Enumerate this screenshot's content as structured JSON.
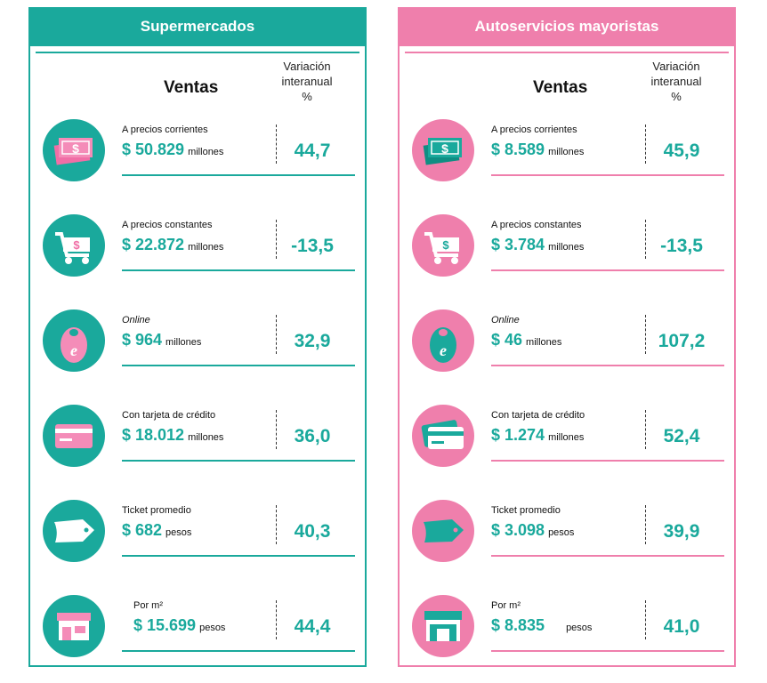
{
  "supermercados": {
    "title": "Supermercados",
    "ventas_header": "Ventas",
    "variacion_header_l1": "Variación",
    "variacion_header_l2": "interanual",
    "variacion_header_l3": "%",
    "rows": [
      {
        "label": "A precios corrientes",
        "value": "$ 50.829",
        "unit": "millones",
        "pct": "44,7",
        "icon": "money-icon"
      },
      {
        "label": "A precios constantes",
        "value": "$ 22.872",
        "unit": "millones",
        "pct": "-13,5",
        "icon": "shopping-cart-icon"
      },
      {
        "label": "Online",
        "value": "$ 964",
        "unit": "millones",
        "pct": "32,9",
        "icon": "online-bag-icon"
      },
      {
        "label": "Con tarjeta de crédito",
        "value": "$ 18.012",
        "unit": "millones",
        "pct": "36,0",
        "icon": "credit-card-icon"
      },
      {
        "label": "Ticket promedio",
        "value": "$ 682",
        "unit": "pesos",
        "pct": "40,3",
        "icon": "ticket-icon"
      },
      {
        "label": "Por m²",
        "value": "$ 15.699",
        "unit": "pesos",
        "pct": "44,4",
        "icon": "store-icon"
      }
    ]
  },
  "mayoristas": {
    "title": "Autoservicios mayoristas",
    "ventas_header": "Ventas",
    "variacion_header_l1": "Variación",
    "variacion_header_l2": "interanual",
    "variacion_header_l3": "%",
    "rows": [
      {
        "label": "A precios corrientes",
        "value": "$ 8.589",
        "unit": "millones",
        "pct": "45,9",
        "icon": "money-icon"
      },
      {
        "label": "A precios constantes",
        "value": "$ 3.784",
        "unit": "millones",
        "pct": "-13,5",
        "icon": "shopping-cart-icon"
      },
      {
        "label": "Online",
        "value": "$ 46",
        "unit": "millones",
        "pct": "107,2",
        "icon": "online-bag-icon"
      },
      {
        "label": "Con tarjeta de crédito",
        "value": "$ 1.274",
        "unit": "millones",
        "pct": "52,4",
        "icon": "credit-card-icon"
      },
      {
        "label": "Ticket promedio",
        "value": "$ 3.098",
        "unit": "pesos",
        "pct": "39,9",
        "icon": "ticket-icon"
      },
      {
        "label": "Por m²",
        "value": "$ 8.835",
        "unit": "pesos",
        "pct": "41,0",
        "icon": "store-icon"
      }
    ]
  },
  "colors": {
    "teal": "#1aa99c",
    "pink": "#ef7fac"
  }
}
